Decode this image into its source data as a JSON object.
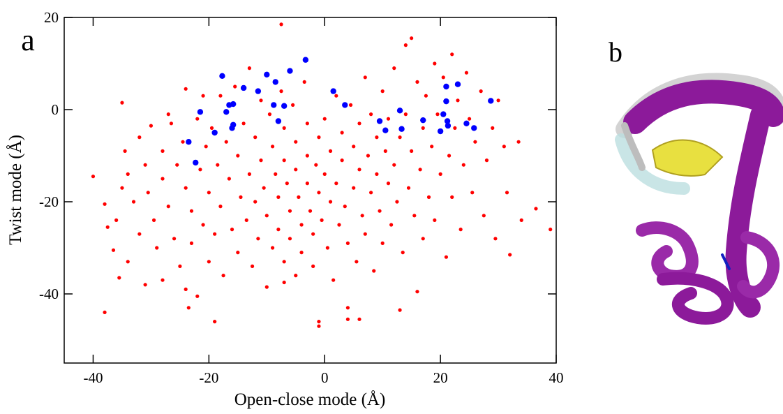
{
  "chart_data": {
    "type": "scatter",
    "panel_labels": [
      "a",
      "b"
    ],
    "x_label": "Open-close mode (Å)",
    "y_label": "Twist mode (Å)",
    "xlim": [
      -45,
      40
    ],
    "ylim": [
      -55,
      20
    ],
    "xticks": [
      -40,
      -20,
      0,
      20,
      40
    ],
    "yticks": [
      -40,
      -20,
      0,
      20
    ],
    "series": [
      {
        "color": "#ff0000",
        "x": [
          -38,
          -37.5,
          -36.5,
          -36,
          -35,
          -34.5,
          -34,
          -33,
          -32,
          -32,
          -31,
          -30.5,
          -30,
          -29.5,
          -29,
          -28,
          -28,
          -27,
          -26.5,
          -26,
          -25.5,
          -25,
          -24.5,
          -24,
          -23,
          -23,
          -22,
          -21.5,
          -21,
          -20.5,
          -20,
          -20,
          -19.5,
          -19,
          -18.5,
          -18,
          -18,
          -17.5,
          -17,
          -16.5,
          -16,
          -15.5,
          -15,
          -15,
          -14.5,
          -14,
          -13.5,
          -13,
          -13,
          -12.5,
          -12,
          -12,
          -11.5,
          -11,
          -11,
          -10.5,
          -10,
          -10,
          -9.5,
          -9,
          -9,
          -8.5,
          -8,
          -8,
          -7.5,
          -7.5,
          -7,
          -7,
          -7,
          -6.5,
          -6,
          -6,
          -5.5,
          -5,
          -5,
          -5,
          -4.5,
          -4,
          -4,
          -3.5,
          -3,
          -3,
          -3,
          -2.5,
          -2,
          -2,
          -1.5,
          -1,
          -1,
          -1,
          -0.5,
          0,
          0,
          0.5,
          1,
          1,
          1.5,
          2,
          2,
          2.5,
          3,
          3,
          3.5,
          4,
          4,
          4.5,
          5,
          5,
          5.5,
          6,
          6,
          6,
          6.5,
          7,
          7,
          7.5,
          8,
          8,
          8.5,
          9,
          9,
          9.5,
          10,
          10,
          10.5,
          11,
          11,
          11.5,
          12,
          12,
          12.5,
          13,
          13,
          13.5,
          14,
          14,
          14.5,
          15,
          15,
          15.5,
          16,
          16,
          16.5,
          17,
          17,
          17.5,
          18,
          18.5,
          19,
          19,
          19.5,
          20,
          20.5,
          21,
          21.5,
          22,
          22,
          22.5,
          23,
          23.5,
          24,
          24.5,
          25,
          25.5,
          26,
          27,
          27.5,
          28,
          29,
          29.5,
          30,
          31,
          31.5,
          32,
          33.5,
          34,
          36.5,
          39,
          -40,
          -38,
          -35.5,
          -34,
          -24,
          -23.5,
          -22,
          -19,
          -7,
          -1,
          4,
          -27,
          -35,
          -21,
          -24,
          -28,
          -31
        ],
        "values": [
          -20.5,
          -25.5,
          -30.5,
          -24,
          -17,
          -9,
          -14,
          -20,
          -6,
          -27,
          -12,
          -18,
          -3.5,
          -24,
          -30,
          -9,
          -15,
          -21,
          -3,
          -28,
          -12,
          -34,
          -7,
          -17,
          -22,
          -29,
          -2,
          -13,
          -25,
          -8,
          -18,
          -33,
          -4,
          -27,
          -12,
          3,
          -21,
          -36,
          -7,
          -15,
          -26,
          5,
          -10,
          -31,
          -19,
          -3,
          -24,
          9,
          -14,
          -34,
          -6,
          -20,
          -28,
          2,
          -11,
          -17,
          -23,
          -38.5,
          -1,
          -8,
          -30,
          -14,
          -19,
          -26,
          18.5,
          4,
          -4,
          -11,
          -33,
          -16,
          -22,
          -28,
          1,
          -7,
          -13,
          -36,
          -19,
          -25,
          -31,
          6,
          -3,
          -10,
          -16,
          -22,
          -27,
          -34,
          -12,
          -47,
          -18,
          -6,
          -24,
          -2,
          -14,
          -30,
          -9,
          -20,
          -37,
          3,
          -16,
          -25,
          -5,
          -11,
          -21,
          -45.5,
          -29,
          1,
          -8,
          -17,
          -33,
          -45.5,
          -3,
          -13,
          -23,
          7,
          -27,
          -10,
          -1,
          -18,
          -35,
          -6,
          -14,
          -22,
          4,
          -29,
          -9,
          -2,
          -16,
          -25,
          9,
          -12,
          -20,
          -43.5,
          -6,
          -31,
          14,
          -1,
          -17,
          15.5,
          -9,
          -23,
          6,
          -39.5,
          -13,
          -4,
          -28,
          3,
          -19,
          -8,
          10,
          -24,
          -1,
          -14,
          7,
          -32,
          -10,
          12,
          -19,
          -4,
          2,
          -26,
          -12,
          8,
          -2,
          -18,
          -7,
          4,
          -23,
          -11,
          -4,
          -28,
          2,
          -8,
          -18,
          -31.5,
          -7,
          -24,
          -21.5,
          -26,
          -14.5,
          -44,
          -36.5,
          -33,
          -39,
          -43,
          -40.5,
          -46,
          -37.5,
          -46,
          -43,
          -1,
          1.5,
          3,
          4.5,
          -37,
          -38
        ]
      },
      {
        "color": "#0000ff",
        "x": [
          -23.5,
          -22.3,
          -21.5,
          -19,
          -17.7,
          -17,
          -16.5,
          -16,
          -15.8,
          -15.8,
          -14,
          -11.5,
          -10,
          -8.8,
          -8.5,
          -8,
          -7,
          -6,
          -3.3,
          1.5,
          3.5,
          9.5,
          10.5,
          13,
          13.3,
          17,
          20,
          20.5,
          21,
          21,
          21.2,
          21.3,
          23,
          24.5,
          25.8,
          28.7
        ],
        "values": [
          -7,
          -11.5,
          -0.5,
          -5,
          7.3,
          -0.5,
          1,
          -4,
          -3.3,
          1.2,
          4.7,
          4,
          7.6,
          1,
          6,
          -2.5,
          0.8,
          8.4,
          10.8,
          4,
          1,
          -2.5,
          -4.5,
          -0.2,
          -4.2,
          -2.3,
          -4.7,
          -1,
          5,
          1.8,
          -2.5,
          -3.5,
          5.5,
          -3,
          -4,
          1.9
        ]
      }
    ]
  }
}
